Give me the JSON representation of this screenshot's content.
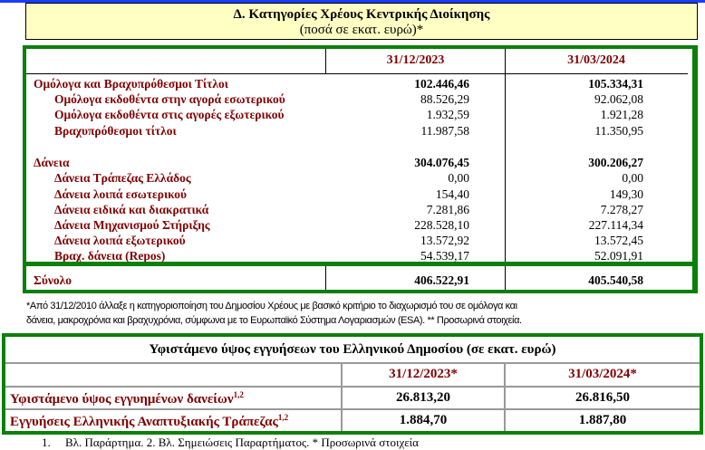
{
  "header": {
    "title": "Δ. Κατηγορίες Χρέους Κεντρικής Διοίκησης",
    "subtitle": "(ποσά σε εκατ. ευρώ)*"
  },
  "debt_table": {
    "columns": [
      "31/12/2023",
      "31/03/2024"
    ],
    "rows": [
      {
        "label": "Ομόλογα και Βραχυπρόθεσμοι Τίτλοι",
        "v1": "102.446,46",
        "v2": "105.334,31",
        "level": 0
      },
      {
        "label": "Ομόλογα εκδοθέντα στην αγορά εσωτερικού",
        "v1": "88.526,29",
        "v2": "92.062,08",
        "level": 1
      },
      {
        "label": "Ομόλογα εκδοθέντα στις αγορές εξωτερικού",
        "v1": "1.932,59",
        "v2": "1.921,28",
        "level": 1
      },
      {
        "label": "Βραχυπρόθεσμοι τίτλοι",
        "v1": "11.987,58",
        "v2": "11.350,95",
        "level": 1
      },
      {
        "label": "Δάνεια",
        "v1": "304.076,45",
        "v2": "300.206,27",
        "level": 0
      },
      {
        "label": "Δάνεια Τράπεζας Ελλάδος",
        "v1": "0,00",
        "v2": "0,00",
        "level": 1
      },
      {
        "label": "Δάνεια λοιπά εσωτερικού",
        "v1": "154,40",
        "v2": "149,30",
        "level": 1
      },
      {
        "label": "Δάνεια ειδικά και διακρατικά",
        "v1": "7.281,86",
        "v2": "7.278,27",
        "level": 1
      },
      {
        "label": "Δάνεια Μηχανισμού Στήριξης",
        "v1": "228.528,10",
        "v2": "227.114,34",
        "level": 1
      },
      {
        "label": "Δάνεια λοιπά εξωτερικού",
        "v1": "13.572,92",
        "v2": "13.572,45",
        "level": 1
      },
      {
        "label": "Βραχ. δάνεια (Repos)",
        "v1": "54.539,17",
        "v2": "52.091,91",
        "level": 1
      }
    ],
    "total": {
      "label": "Σύνολο",
      "v1": "406.522,91",
      "v2": "405.540,58"
    }
  },
  "note": {
    "line1": "*Από 31/12/2010 άλλαξε η κατηγοριοποίηση του Δημοσίου Χρέους με βασικό κριτήριο το διαχωρισμό του σε ομόλογα και",
    "line2": "δάνεια, μακροχρόνια και βραχυχρόνια, σύμφωνα με το Ευρωπαϊκό Σύστημα Λογαριασμών (ESA). ** Προσωρινά στοιχεία."
  },
  "guarantees": {
    "title": "Υφιστάμενο ύψος εγγυήσεων του Ελληνικού Δημοσίου (σε εκατ. ευρώ)",
    "columns": [
      "31/12/2023*",
      "31/03/2024*"
    ],
    "rows": [
      {
        "label": "Υφιστάμενο ύψος εγγυημένων δανείων",
        "sup": "1,2",
        "v1": "26.813,20",
        "v2": "26.816,50"
      },
      {
        "label": "Εγγυήσεις Ελληνικής Αναπτυξιακής Τράπεζας",
        "sup": "1,2",
        "v1": "1.884,70",
        "v2": "1.887,80"
      }
    ]
  },
  "footer": {
    "num": "1.",
    "text": "Βλ. Παράρτημα. 2. Βλ. Σημειώσεις Παραρτήματος. * Προσωρινά στοιχεία"
  },
  "colors": {
    "label": "#800000",
    "border": "#0a800a",
    "header_bg": "#ffffc4"
  }
}
